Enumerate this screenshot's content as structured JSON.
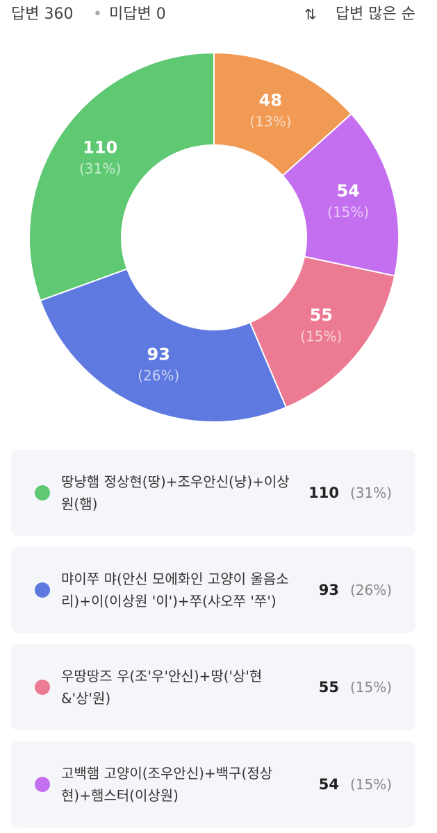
{
  "header": {
    "answered": "답변 360",
    "unanswered": "미답변 0",
    "sort": "답변 많은 순"
  },
  "chart_data": {
    "type": "pie",
    "categories": [
      "땅냥햄 정상현(땅)+조우안신(냥)+이상원(햄)",
      "먀이쭈 먀(안신 모에화인 고양이 울음소리)+이(이상원 '이')+쭈(샤오쭈 '쭈')",
      "우땅땅즈 우(조'우'안신)+땅('상'현&'상'원)",
      "고백햄 고양이(조우안신)+백구(정상현)+햄스터(이상원)",
      null
    ],
    "values": [
      110,
      93,
      55,
      54,
      48
    ],
    "percent_labels": [
      "(31%)",
      "(26%)",
      "(15%)",
      "(15%)",
      "(13%)"
    ],
    "colors": [
      "#5fc872",
      "#5e7ae0",
      "#ec7a93",
      "#c46ff0",
      "#f09a54"
    ]
  }
}
